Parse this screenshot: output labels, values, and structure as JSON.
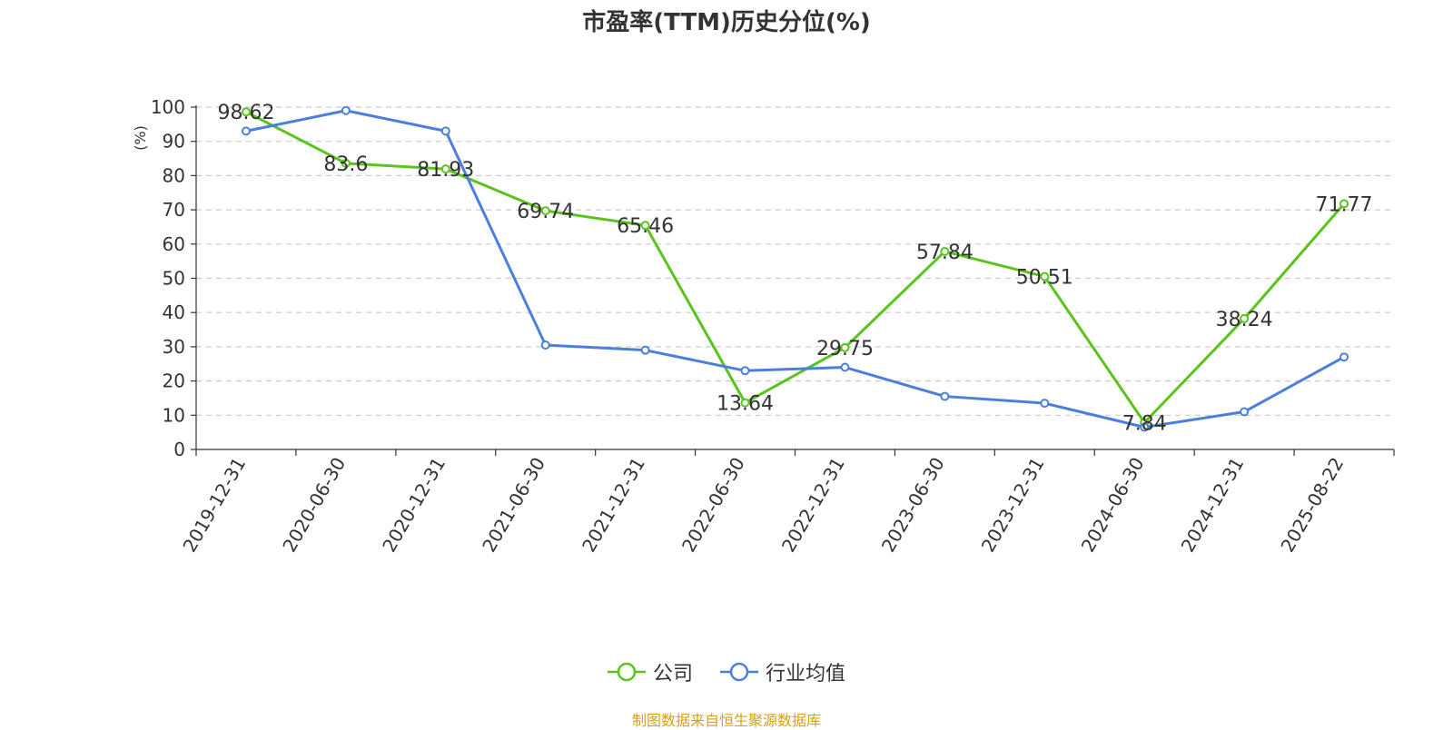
{
  "chart_data": {
    "type": "line",
    "title": "市盈率(TTM)历史分位(%)",
    "ylabel": "(%)",
    "xlabel": "",
    "ylim": [
      0,
      100
    ],
    "yticks": [
      0,
      10,
      20,
      30,
      40,
      50,
      60,
      70,
      80,
      90,
      100
    ],
    "categories": [
      "2019-12-31",
      "2020-06-30",
      "2020-12-31",
      "2021-06-30",
      "2021-12-31",
      "2022-06-30",
      "2022-12-31",
      "2023-06-30",
      "2023-12-31",
      "2024-06-30",
      "2024-12-31",
      "2025-08-22"
    ],
    "grid": true,
    "legend_position": "bottom",
    "series": [
      {
        "name": "公司",
        "color": "#5ac31c",
        "show_labels": true,
        "values": [
          98.62,
          83.6,
          81.93,
          69.74,
          65.46,
          13.64,
          29.75,
          57.84,
          50.51,
          7.84,
          38.24,
          71.77
        ]
      },
      {
        "name": "行业均值",
        "color": "#4a7fdc",
        "show_labels": false,
        "values": [
          93,
          99,
          93,
          30.5,
          29,
          23,
          24,
          15.5,
          13.5,
          6.5,
          11,
          27
        ]
      }
    ]
  },
  "source_text": "制图数据来自恒生聚源数据库",
  "colors": {
    "ylabel": "#ff0000",
    "grid": "#cccccc",
    "axis": "#333333",
    "source": "#d4a017"
  }
}
